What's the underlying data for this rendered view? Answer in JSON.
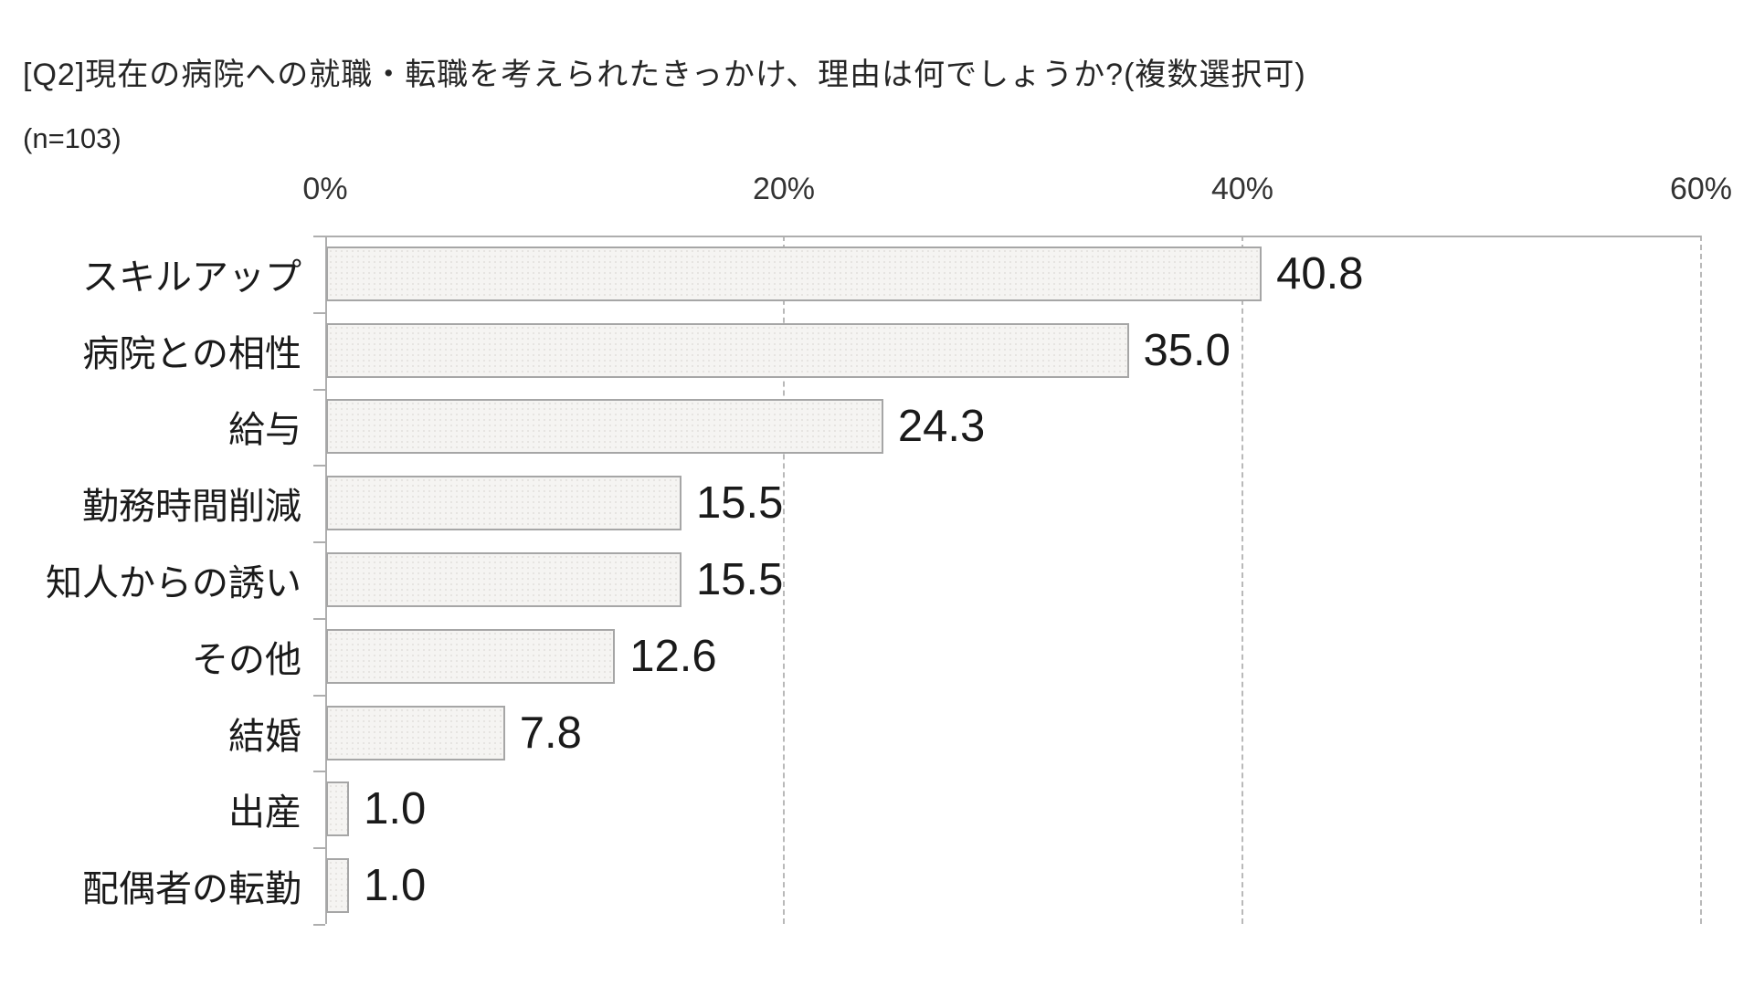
{
  "header": {
    "title": "[Q2]現在の病院への就職・転職を考えられたきっかけ、理由は何でしょうか?(複数選択可)",
    "sample_size": "(n=103)"
  },
  "chart_data": {
    "type": "bar",
    "orientation": "horizontal",
    "title": "[Q2]現在の病院への就職・転職を考えられたきっかけ、理由は何でしょうか?(複数選択可)",
    "subtitle": "(n=103)",
    "categories": [
      "スキルアップ",
      "病院との相性",
      "給与",
      "勤務時間削減",
      "知人からの誘い",
      "その他",
      "結婚",
      "出産",
      "配偶者の転勤"
    ],
    "values": [
      40.8,
      35.0,
      24.3,
      15.5,
      15.5,
      12.6,
      7.8,
      1.0,
      1.0
    ],
    "value_labels": [
      "40.8",
      "35.0",
      "24.3",
      "15.5",
      "15.5",
      "12.6",
      "7.8",
      "1.0",
      "1.0"
    ],
    "unit": "%",
    "xlim": [
      0,
      60
    ],
    "x_ticks": [
      {
        "label": "0%",
        "value": 0
      },
      {
        "label": "20%",
        "value": 20
      },
      {
        "label": "40%",
        "value": 40
      },
      {
        "label": "60%",
        "value": 60
      }
    ],
    "grid": "vertical dashed gridlines at 20%, 40%, 60%",
    "legend": "none",
    "colors": {
      "bar_fill": "#f5f4f2",
      "bar_pattern_dot": "#e6e4e1",
      "bar_border": "#a6a6a6",
      "axis_line": "#aeaeae",
      "gridline": "#b9b9b9",
      "text": "#1a1a1a",
      "background": "#ffffff"
    }
  }
}
